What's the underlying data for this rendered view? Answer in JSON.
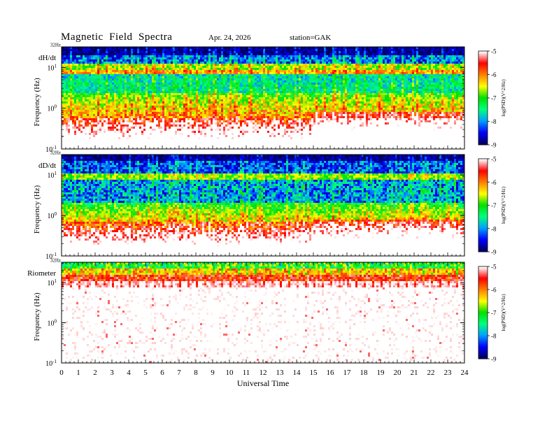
{
  "header": {
    "title": "Magnetic  Field  Spectra",
    "date": "Apr. 24, 2026",
    "station": "station=GAK"
  },
  "chart_data": {
    "type": "heatmap",
    "xlabel": "Universal Time",
    "x_ticks": [
      "0",
      "1",
      "2",
      "3",
      "4",
      "5",
      "6",
      "7",
      "8",
      "9",
      "10",
      "11",
      "12",
      "13",
      "14",
      "15",
      "16",
      "17",
      "18",
      "19",
      "20",
      "21",
      "22",
      "23",
      "24"
    ],
    "xlim": [
      0,
      24
    ],
    "ylabel": "Frequency  (Hz)",
    "ylim_hz": [
      0.1,
      32
    ],
    "y_scale": "log",
    "y_ticks": [
      {
        "base": "10",
        "exp": "1",
        "value": 10
      },
      {
        "base": "10",
        "exp": "0",
        "value": 1
      },
      {
        "base": "10",
        "exp": "-1",
        "value": 0.1
      }
    ],
    "top_freq_label": "32Hz",
    "colorbar": {
      "label": "log(PSD)(V^2/Hz)",
      "ticks": [
        "-5",
        "-6",
        "-7",
        "-8",
        "-9"
      ],
      "range": [
        -9,
        -5
      ],
      "colors": [
        "#000060",
        "#0000ff",
        "#00a0ff",
        "#00ff80",
        "#00e000",
        "#ffff00",
        "#ff8000",
        "#ff0000",
        "#ffffff"
      ]
    },
    "panels": [
      {
        "name": "dH/dt",
        "label": "dH/dt",
        "disturbance_start_ut": 14.8
      },
      {
        "name": "dD/dt",
        "label": "dD/dt",
        "disturbance_start_ut": 14.8
      },
      {
        "name": "Riometer",
        "label": "Riometer",
        "band_peak_hz": 10
      }
    ]
  }
}
